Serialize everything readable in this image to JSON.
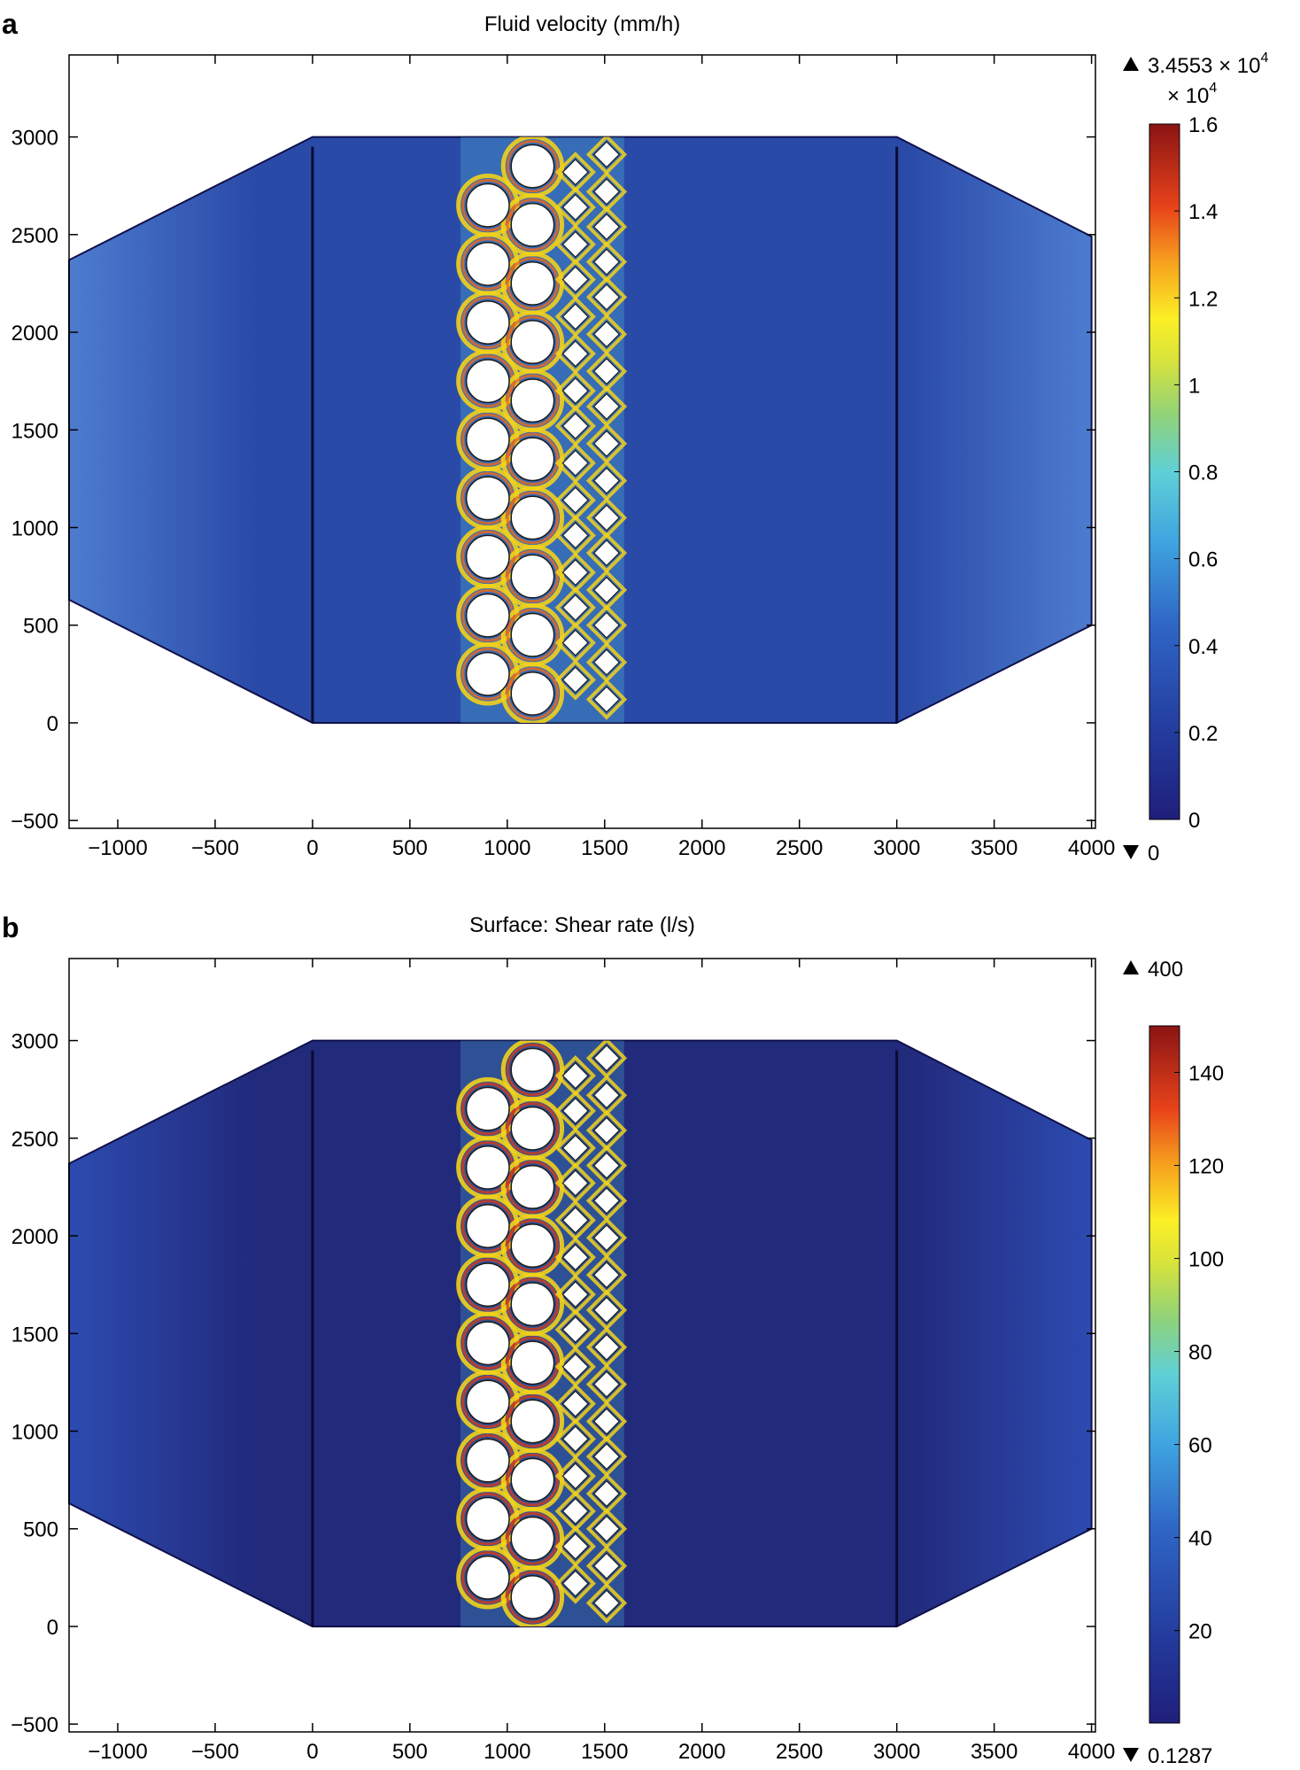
{
  "panels": [
    {
      "label": "a",
      "title": "Fluid velocity (mm/h)",
      "colorbar": {
        "max_label": "3.4553 × 10",
        "max_exp": "4",
        "multiplier_label": "× 10",
        "multiplier_exp": "4",
        "min_label": "0",
        "ticks": [
          "1.6",
          "1.4",
          "1.2",
          "1",
          "0.8",
          "0.6",
          "0.4",
          "0.2",
          "0"
        ],
        "tick_values": [
          1.6,
          1.4,
          1.2,
          1.0,
          0.8,
          0.6,
          0.4,
          0.2,
          0.0
        ],
        "range": [
          0,
          1.6
        ]
      },
      "field_colors": {
        "background": "#2a4aa8",
        "gradient": "#4d7ccf",
        "gap_hot": "#f2d21b",
        "gap_hot2": "#ee6a19",
        "gap_warm": "#5ed3e2"
      }
    },
    {
      "label": "b",
      "title": "Surface: Shear rate (l/s)",
      "colorbar": {
        "max_label": "400",
        "min_label": "0.1287",
        "ticks": [
          "140",
          "120",
          "100",
          "80",
          "60",
          "40",
          "20"
        ],
        "tick_values": [
          140,
          120,
          100,
          80,
          60,
          40,
          20
        ],
        "range": [
          0.1287,
          150
        ]
      },
      "field_colors": {
        "background": "#222a7c",
        "gradient": "#2c4bb0",
        "gap_hot": "#f2d21b",
        "gap_hot2": "#d83a18",
        "gap_warm": "#52c8e0"
      }
    }
  ],
  "chart_data": [
    {
      "type": "heatmap",
      "title": "Fluid velocity (mm/h)",
      "xlabel": "",
      "ylabel": "",
      "xlim": [
        -1250,
        4020
      ],
      "ylim": [
        -540,
        3420
      ],
      "x_ticks": [
        -1000,
        -500,
        0,
        500,
        1000,
        1500,
        2000,
        2500,
        3000,
        3500,
        4000
      ],
      "x_tick_labels": [
        "−1000",
        "−500",
        "0",
        "500",
        "1000",
        "1500",
        "2000",
        "2500",
        "3000",
        "3500",
        "4000"
      ],
      "y_ticks": [
        -500,
        0,
        500,
        1000,
        1500,
        2000,
        2500,
        3000
      ],
      "y_tick_labels": [
        "−500",
        "0",
        "500",
        "1000",
        "1500",
        "2000",
        "2500",
        "3000"
      ],
      "color_range": [
        0,
        1.6
      ],
      "color_max": "3.4553 × 10^4",
      "color_min": 0,
      "color_scale_factor": "× 10^4"
    },
    {
      "type": "heatmap",
      "title": "Surface: Shear rate (l/s)",
      "xlabel": "",
      "ylabel": "",
      "xlim": [
        -1250,
        4020
      ],
      "ylim": [
        -540,
        3420
      ],
      "x_ticks": [
        -1000,
        -500,
        0,
        500,
        1000,
        1500,
        2000,
        2500,
        3000,
        3500,
        4000
      ],
      "x_tick_labels": [
        "−1000",
        "−500",
        "0",
        "500",
        "1000",
        "1500",
        "2000",
        "2500",
        "3000",
        "3500",
        "4000"
      ],
      "y_ticks": [
        -500,
        0,
        500,
        1000,
        1500,
        2000,
        2500,
        3000
      ],
      "y_tick_labels": [
        "−500",
        "0",
        "500",
        "1000",
        "1500",
        "2000",
        "2500",
        "3000"
      ],
      "color_range": [
        0.1287,
        150
      ],
      "color_max": 400,
      "color_min": 0.1287
    }
  ],
  "geometry": {
    "device_outline": [
      [
        -1250,
        2370
      ],
      [
        0,
        3000
      ],
      [
        3000,
        3000
      ],
      [
        4000,
        2490
      ],
      [
        4000,
        500
      ],
      [
        3000,
        0
      ],
      [
        0,
        0
      ],
      [
        -1250,
        630
      ]
    ],
    "inner_walls_x": [
      0,
      3000
    ],
    "circle_radius": 110,
    "pillar_col1": {
      "x": 900,
      "y": [
        2650,
        2350,
        2050,
        1750,
        1450,
        1150,
        850,
        550,
        250
      ]
    },
    "pillar_col2": {
      "x": 1130,
      "y": [
        2850,
        2550,
        2250,
        1950,
        1650,
        1350,
        1050,
        750,
        450,
        150
      ]
    },
    "diamond_half": 65,
    "diamond_col1": {
      "x": 1350,
      "y": [
        2820,
        2640,
        2450,
        2270,
        2080,
        1890,
        1700,
        1520,
        1330,
        1140,
        960,
        770,
        590,
        410,
        220
      ]
    },
    "diamond_col2": {
      "x": 1510,
      "y": [
        2910,
        2720,
        2540,
        2360,
        2180,
        1990,
        1800,
        1620,
        1430,
        1240,
        1050,
        870,
        680,
        500,
        310,
        120
      ]
    }
  }
}
